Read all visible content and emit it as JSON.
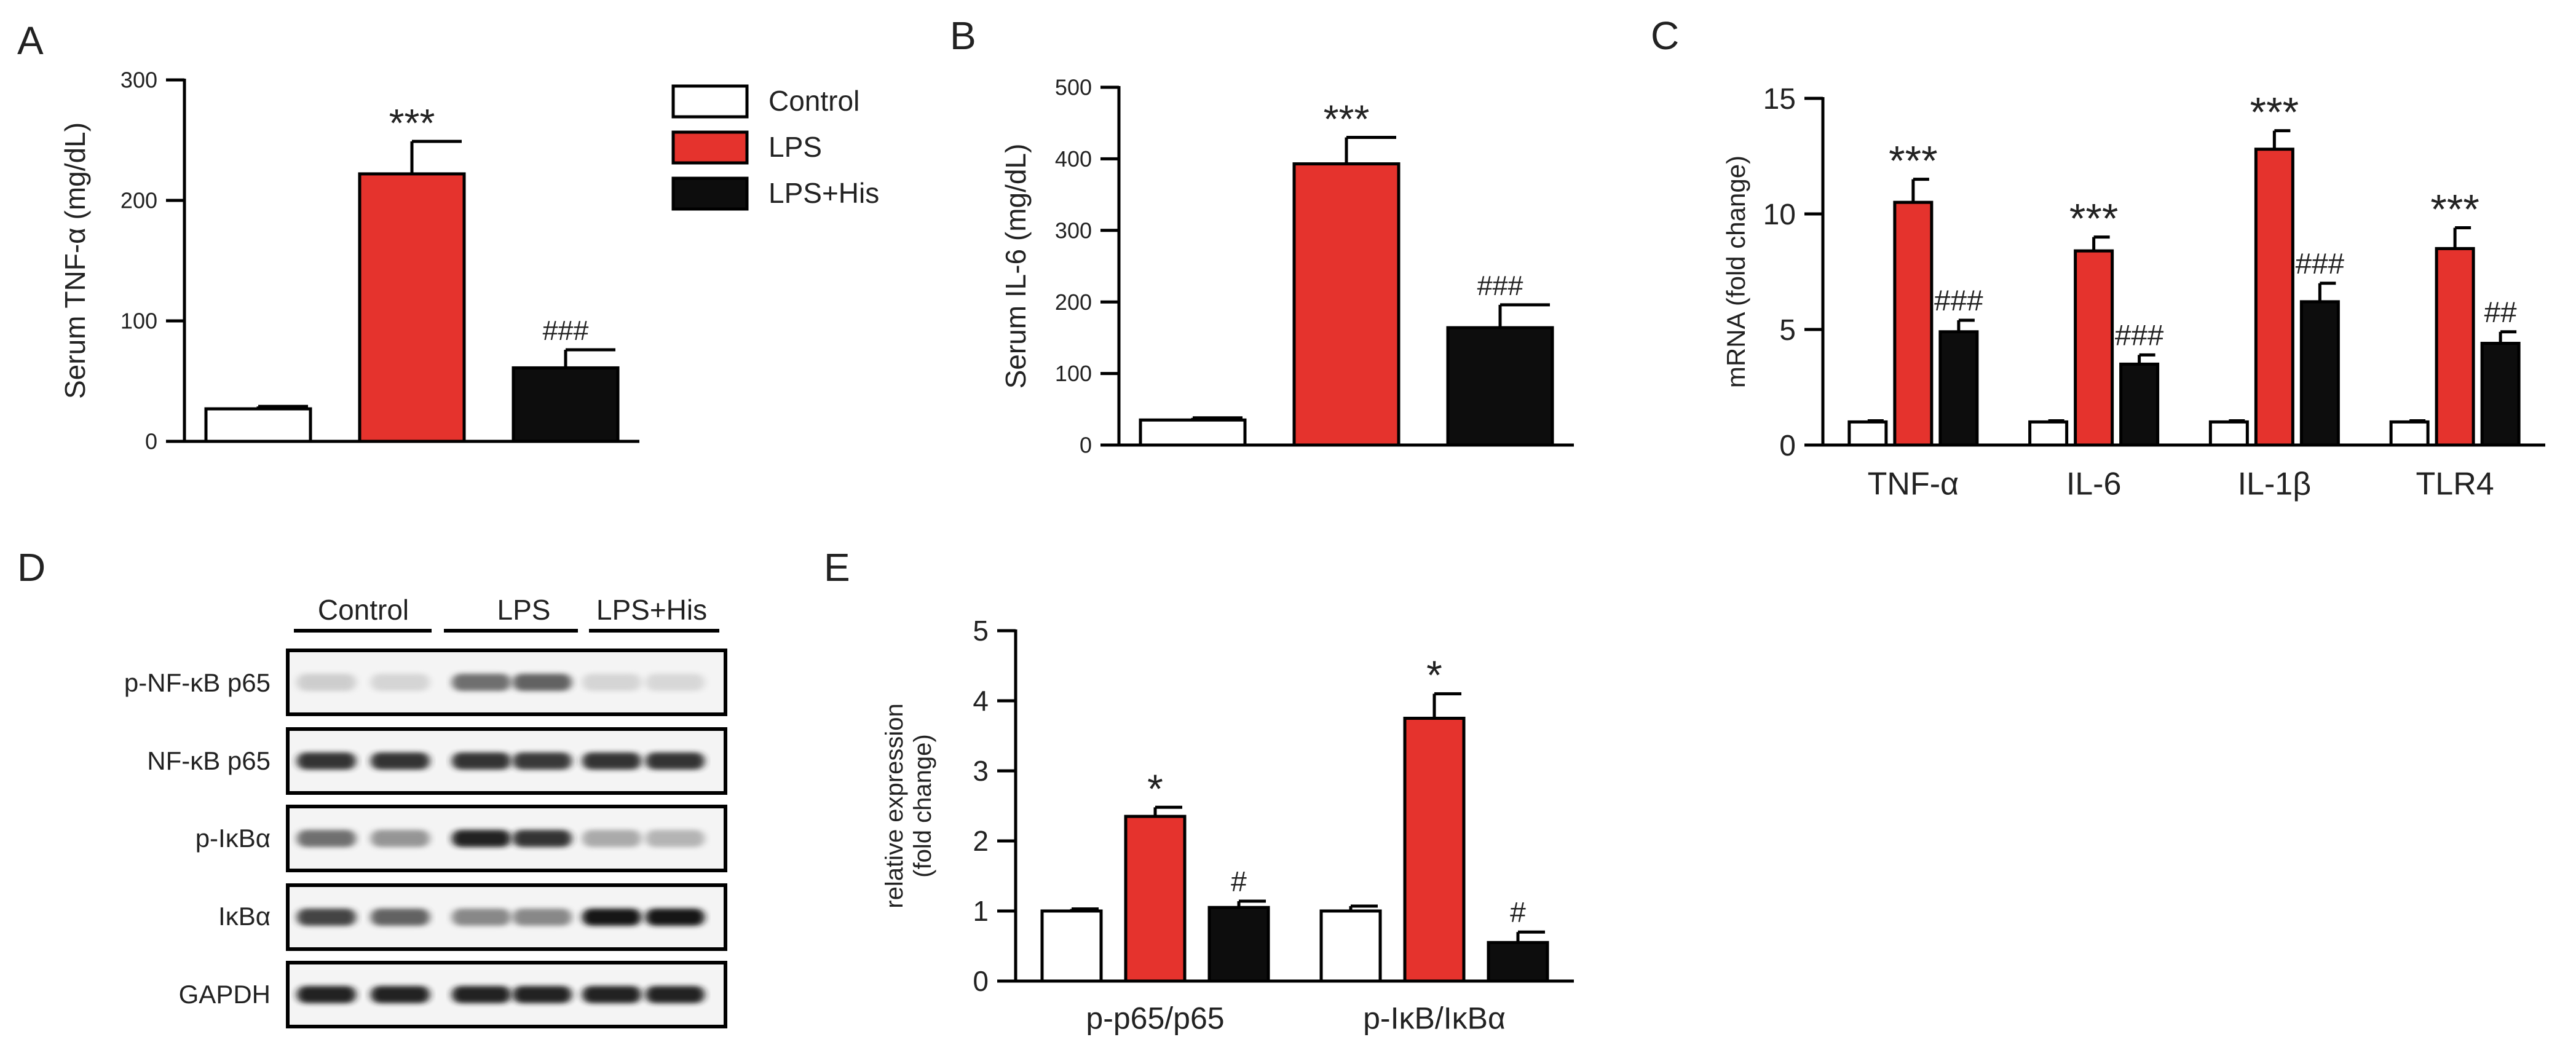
{
  "colors": {
    "control": "#ffffff",
    "lps": "#e5332d",
    "lps_his": "#0d0d0d",
    "axis": "#000000"
  },
  "legend": [
    {
      "label": "Control",
      "color": "#ffffff"
    },
    {
      "label": "LPS",
      "color": "#e5332d"
    },
    {
      "label": "LPS+His",
      "color": "#0d0d0d"
    }
  ],
  "panel_labels": {
    "A": "A",
    "B": "B",
    "C": "C",
    "D": "D",
    "E": "E"
  },
  "chart_data": [
    {
      "id": "A",
      "type": "bar",
      "ylabel": "Serum TNF-α (mg/dL)",
      "ylim": [
        0,
        300
      ],
      "yticks": [
        0,
        100,
        200,
        300
      ],
      "categories": [
        ""
      ],
      "series": [
        {
          "name": "Control",
          "values": [
            27
          ],
          "errors": [
            2
          ],
          "marks": [
            ""
          ]
        },
        {
          "name": "LPS",
          "values": [
            222
          ],
          "errors": [
            27
          ],
          "marks": [
            "***"
          ]
        },
        {
          "name": "LPS+His",
          "values": [
            61
          ],
          "errors": [
            15
          ],
          "marks": [
            "###"
          ]
        }
      ]
    },
    {
      "id": "B",
      "type": "bar",
      "ylabel": "Serum IL-6 (mg/dL)",
      "ylim": [
        0,
        500
      ],
      "yticks": [
        0,
        100,
        200,
        300,
        400,
        500
      ],
      "categories": [
        ""
      ],
      "series": [
        {
          "name": "Control",
          "values": [
            35
          ],
          "errors": [
            3
          ],
          "marks": [
            ""
          ]
        },
        {
          "name": "LPS",
          "values": [
            393
          ],
          "errors": [
            37
          ],
          "marks": [
            "***"
          ]
        },
        {
          "name": "LPS+His",
          "values": [
            164
          ],
          "errors": [
            32
          ],
          "marks": [
            "###"
          ]
        }
      ]
    },
    {
      "id": "C",
      "type": "bar",
      "ylabel": "mRNA (fold change)",
      "ylim": [
        0,
        15
      ],
      "yticks": [
        0,
        5,
        10,
        15
      ],
      "categories": [
        "TNF-α",
        "IL-6",
        "IL-1β",
        "TLR4"
      ],
      "series": [
        {
          "name": "Control",
          "values": [
            1,
            1,
            1,
            1
          ],
          "errors": [
            0.05,
            0.05,
            0.05,
            0.05
          ],
          "marks": [
            "",
            "",
            "",
            ""
          ]
        },
        {
          "name": "LPS",
          "values": [
            10.5,
            8.4,
            12.8,
            8.5
          ],
          "errors": [
            1.0,
            0.6,
            0.8,
            0.9
          ],
          "marks": [
            "***",
            "***",
            "***",
            "***"
          ]
        },
        {
          "name": "LPS+His",
          "values": [
            4.9,
            3.5,
            6.2,
            4.4
          ],
          "errors": [
            0.5,
            0.4,
            0.8,
            0.5
          ],
          "marks": [
            "###",
            "###",
            "###",
            "##"
          ]
        }
      ]
    },
    {
      "id": "E",
      "type": "bar",
      "ylabel": "relative expression (fold change)",
      "ylim": [
        0,
        5
      ],
      "yticks": [
        0,
        1,
        2,
        3,
        4,
        5
      ],
      "categories": [
        "p-p65/p65",
        "p-IκB/IκBα"
      ],
      "series": [
        {
          "name": "Control",
          "values": [
            1.0,
            1.0
          ],
          "errors": [
            0.03,
            0.07
          ],
          "marks": [
            "",
            ""
          ]
        },
        {
          "name": "LPS",
          "values": [
            2.35,
            3.75
          ],
          "errors": [
            0.13,
            0.35
          ],
          "marks": [
            "*",
            "*"
          ]
        },
        {
          "name": "LPS+His",
          "values": [
            1.05,
            0.55
          ],
          "errors": [
            0.09,
            0.15
          ],
          "marks": [
            "#",
            "#"
          ]
        }
      ]
    }
  ],
  "blot": {
    "groups": [
      "Control",
      "LPS",
      "LPS+His"
    ],
    "rows": [
      {
        "label": "p-NF-κB p65",
        "intensities": [
          0.25,
          0.2,
          0.7,
          0.75,
          0.2,
          0.18
        ]
      },
      {
        "label": "NF-κB p65",
        "intensities": [
          0.9,
          0.9,
          0.9,
          0.88,
          0.9,
          0.9
        ]
      },
      {
        "label": "p-IκBα",
        "intensities": [
          0.7,
          0.55,
          0.95,
          0.9,
          0.45,
          0.4
        ]
      },
      {
        "label": "IκBα",
        "intensities": [
          0.85,
          0.75,
          0.6,
          0.6,
          1.0,
          1.0
        ]
      },
      {
        "label": "GAPDH",
        "intensities": [
          0.95,
          0.95,
          0.95,
          0.95,
          0.95,
          0.95
        ]
      }
    ]
  }
}
